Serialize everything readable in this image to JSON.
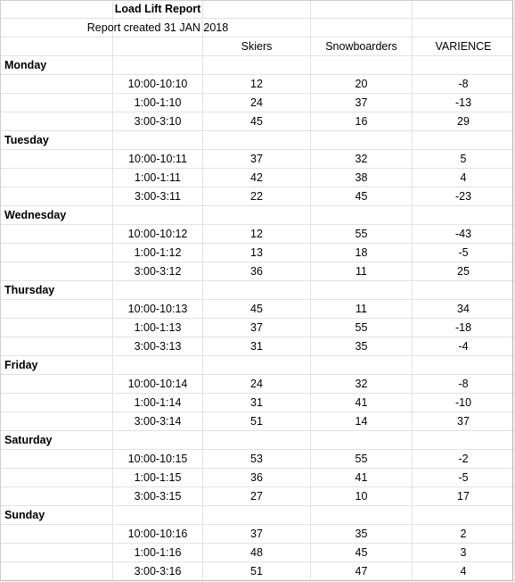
{
  "report": {
    "title": "Load Lift Report",
    "subtitle": "Report created 31 JAN 2018",
    "headers": [
      "Skiers",
      "Snowboarders",
      "VARIENCE"
    ]
  },
  "days": [
    {
      "name": "Monday",
      "rows": [
        {
          "time": "10:00-10:10",
          "skiers": "12",
          "snowboarders": "20",
          "variance": "-8"
        },
        {
          "time": "1:00-1:10",
          "skiers": "24",
          "snowboarders": "37",
          "variance": "-13"
        },
        {
          "time": "3:00-3:10",
          "skiers": "45",
          "snowboarders": "16",
          "variance": "29"
        }
      ]
    },
    {
      "name": "Tuesday",
      "rows": [
        {
          "time": "10:00-10:11",
          "skiers": "37",
          "snowboarders": "32",
          "variance": "5"
        },
        {
          "time": "1:00-1:11",
          "skiers": "42",
          "snowboarders": "38",
          "variance": "4"
        },
        {
          "time": "3:00-3:11",
          "skiers": "22",
          "snowboarders": "45",
          "variance": "-23"
        }
      ]
    },
    {
      "name": "Wednesday",
      "rows": [
        {
          "time": "10:00-10:12",
          "skiers": "12",
          "snowboarders": "55",
          "variance": "-43"
        },
        {
          "time": "1:00-1:12",
          "skiers": "13",
          "snowboarders": "18",
          "variance": "-5"
        },
        {
          "time": "3:00-3:12",
          "skiers": "36",
          "snowboarders": "11",
          "variance": "25"
        }
      ]
    },
    {
      "name": "Thursday",
      "rows": [
        {
          "time": "10:00-10:13",
          "skiers": "45",
          "snowboarders": "11",
          "variance": "34"
        },
        {
          "time": "1:00-1:13",
          "skiers": "37",
          "snowboarders": "55",
          "variance": "-18"
        },
        {
          "time": "3:00-3:13",
          "skiers": "31",
          "snowboarders": "35",
          "variance": "-4"
        }
      ]
    },
    {
      "name": "Friday",
      "rows": [
        {
          "time": "10:00-10:14",
          "skiers": "24",
          "snowboarders": "32",
          "variance": "-8"
        },
        {
          "time": "1:00-1:14",
          "skiers": "31",
          "snowboarders": "41",
          "variance": "-10"
        },
        {
          "time": "3:00-3:14",
          "skiers": "51",
          "snowboarders": "14",
          "variance": "37"
        }
      ]
    },
    {
      "name": "Saturday",
      "rows": [
        {
          "time": "10:00-10:15",
          "skiers": "53",
          "snowboarders": "55",
          "variance": "-2"
        },
        {
          "time": "1:00-1:15",
          "skiers": "36",
          "snowboarders": "41",
          "variance": "-5"
        },
        {
          "time": "3:00-3:15",
          "skiers": "27",
          "snowboarders": "10",
          "variance": "17"
        }
      ]
    },
    {
      "name": "Sunday",
      "rows": [
        {
          "time": "10:00-10:16",
          "skiers": "37",
          "snowboarders": "35",
          "variance": "2"
        },
        {
          "time": "1:00-1:16",
          "skiers": "48",
          "snowboarders": "45",
          "variance": "3"
        },
        {
          "time": "3:00-3:16",
          "skiers": "51",
          "snowboarders": "47",
          "variance": "4"
        }
      ]
    }
  ]
}
